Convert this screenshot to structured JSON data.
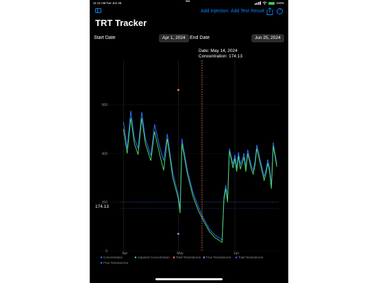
{
  "status_bar": {
    "time": "11:11 AM",
    "date": "Tue Jun 25",
    "dots": "•••",
    "battery": "100%"
  },
  "toolbar": {
    "add_injection": "Add Injection",
    "add_test_result": "Add Test Result",
    "help_glyph": "?"
  },
  "title": "TRT Tracker",
  "date_range": {
    "start_label": "Start Date",
    "start_value": "Apr 1, 2024",
    "end_label": "End Date",
    "end_value": "Jun 25, 2024"
  },
  "tooltip": {
    "date_line": "Date: May 14, 2024",
    "concentration_line": "Concentration: 174.13"
  },
  "selected_value_label": "174.13",
  "colors": {
    "accent": "#0a84ff",
    "concentration": "#2f6fff",
    "adjusted": "#4cd964",
    "total_t": "#ff7f4f",
    "free_t": "#b57bff"
  },
  "chart_data": {
    "type": "line",
    "x_axis": {
      "ticks": [
        {
          "day": 1,
          "label": "Apr"
        },
        {
          "day": 31,
          "label": "May"
        },
        {
          "day": 62,
          "label": "Jun"
        }
      ],
      "range_days": [
        -1,
        86
      ]
    },
    "y_axis": {
      "ticks": [
        0,
        200,
        400,
        600
      ],
      "range": [
        0,
        760
      ]
    },
    "selected": {
      "day": 44,
      "value": 174.13
    },
    "series": [
      {
        "name": "Concentration",
        "color": "#2f6fff",
        "points": [
          [
            1,
            530
          ],
          [
            3,
            420
          ],
          [
            5,
            575
          ],
          [
            7,
            460
          ],
          [
            9,
            420
          ],
          [
            11,
            570
          ],
          [
            13,
            460
          ],
          [
            16,
            390
          ],
          [
            18,
            520
          ],
          [
            21,
            420
          ],
          [
            23,
            370
          ],
          [
            25,
            480
          ],
          [
            28,
            320
          ],
          [
            31,
            230
          ],
          [
            32,
            170
          ],
          [
            33,
            460
          ],
          [
            36,
            330
          ],
          [
            39,
            240
          ],
          [
            42,
            180
          ],
          [
            45,
            130
          ],
          [
            48,
            90
          ],
          [
            51,
            65
          ],
          [
            55,
            45
          ],
          [
            56,
            220
          ],
          [
            57,
            270
          ],
          [
            58,
            210
          ],
          [
            59,
            420
          ],
          [
            61,
            355
          ],
          [
            62,
            395
          ],
          [
            63,
            340
          ],
          [
            64,
            405
          ],
          [
            65,
            355
          ],
          [
            66,
            375
          ],
          [
            67,
            400
          ],
          [
            68,
            340
          ],
          [
            69,
            415
          ],
          [
            71,
            350
          ],
          [
            72,
            330
          ],
          [
            73,
            365
          ],
          [
            74,
            435
          ],
          [
            76,
            370
          ],
          [
            78,
            305
          ],
          [
            79,
            330
          ],
          [
            80,
            375
          ],
          [
            81,
            340
          ],
          [
            82,
            270
          ],
          [
            83,
            445
          ],
          [
            85,
            355
          ]
        ]
      },
      {
        "name": "Adjusted Concentration",
        "color": "#4cd964",
        "points": [
          [
            1,
            500
          ],
          [
            3,
            400
          ],
          [
            5,
            545
          ],
          [
            7,
            440
          ],
          [
            9,
            395
          ],
          [
            11,
            545
          ],
          [
            13,
            440
          ],
          [
            16,
            370
          ],
          [
            18,
            490
          ],
          [
            21,
            390
          ],
          [
            23,
            330
          ],
          [
            25,
            460
          ],
          [
            28,
            300
          ],
          [
            31,
            215
          ],
          [
            32,
            155
          ],
          [
            33,
            440
          ],
          [
            36,
            315
          ],
          [
            39,
            225
          ],
          [
            42,
            165
          ],
          [
            45,
            120
          ],
          [
            48,
            80
          ],
          [
            51,
            55
          ],
          [
            55,
            35
          ],
          [
            56,
            210
          ],
          [
            57,
            255
          ],
          [
            58,
            200
          ],
          [
            59,
            410
          ],
          [
            61,
            340
          ],
          [
            62,
            380
          ],
          [
            63,
            325
          ],
          [
            64,
            390
          ],
          [
            65,
            335
          ],
          [
            66,
            360
          ],
          [
            67,
            385
          ],
          [
            68,
            325
          ],
          [
            69,
            400
          ],
          [
            71,
            335
          ],
          [
            72,
            315
          ],
          [
            73,
            350
          ],
          [
            74,
            420
          ],
          [
            76,
            355
          ],
          [
            78,
            290
          ],
          [
            79,
            315
          ],
          [
            80,
            360
          ],
          [
            81,
            325
          ],
          [
            82,
            255
          ],
          [
            83,
            430
          ],
          [
            85,
            345
          ]
        ]
      }
    ],
    "test_results": [
      {
        "name": "Total Testosterone",
        "day": 31,
        "value": 660,
        "color": "#ff7f4f"
      },
      {
        "name": "Free Testosterone",
        "day": 31,
        "value": 70,
        "color": "#b57bff"
      }
    ],
    "reference_lines": [
      200,
      174.13
    ],
    "legend": [
      {
        "label": "Concentration",
        "color": "#2f6fff"
      },
      {
        "label": "Adjusted Concentration",
        "color": "#4cd964"
      },
      {
        "label": "Total Testosterone",
        "color": "#ff7f4f"
      },
      {
        "label": "Free Testosterone",
        "color": "#b57bff"
      },
      {
        "label": "Total Testosterone",
        "color": "#2f6fff"
      },
      {
        "label": "Free Testosterone",
        "color": "#2f6fff"
      }
    ]
  }
}
